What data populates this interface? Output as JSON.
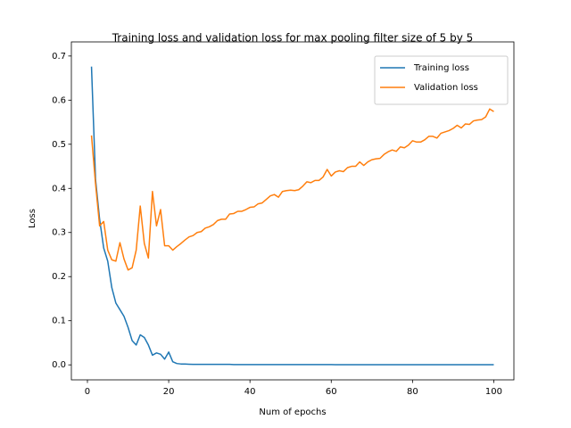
{
  "chart_data": {
    "type": "line",
    "title": "Training loss and validation loss for max pooling filter size of 5 by 5",
    "x_label": "Num of epochs",
    "y_label": "Loss",
    "x": [
      1,
      2,
      3,
      4,
      5,
      6,
      7,
      8,
      9,
      10,
      11,
      12,
      13,
      14,
      15,
      16,
      17,
      18,
      19,
      20,
      21,
      22,
      23,
      24,
      25,
      26,
      27,
      28,
      29,
      30,
      31,
      32,
      33,
      34,
      35,
      36,
      37,
      38,
      39,
      40,
      41,
      42,
      43,
      44,
      45,
      46,
      47,
      48,
      49,
      50,
      51,
      52,
      53,
      54,
      55,
      56,
      57,
      58,
      59,
      60,
      61,
      62,
      63,
      64,
      65,
      66,
      67,
      68,
      69,
      70,
      71,
      72,
      73,
      74,
      75,
      76,
      77,
      78,
      79,
      80,
      81,
      82,
      83,
      84,
      85,
      86,
      87,
      88,
      89,
      90,
      91,
      92,
      93,
      94,
      95,
      96,
      97,
      98,
      99,
      100
    ],
    "series": [
      {
        "name": "Training loss",
        "color": "#1f77b4",
        "values": [
          0.676,
          0.42,
          0.33,
          0.265,
          0.235,
          0.175,
          0.14,
          0.125,
          0.11,
          0.085,
          0.055,
          0.045,
          0.068,
          0.062,
          0.045,
          0.022,
          0.027,
          0.024,
          0.013,
          0.029,
          0.007,
          0.003,
          0.002,
          0.002,
          0.0015,
          0.001,
          0.001,
          0.001,
          0.001,
          0.001,
          0.001,
          0.001,
          0.001,
          0.001,
          0.001,
          0.0005,
          0.0005,
          0.0005,
          0.0005,
          0.0005,
          0.0005,
          0.0005,
          0.0005,
          0.0005,
          0.0005,
          0.0005,
          0.0005,
          0.0005,
          0.0005,
          0.0005,
          0.0005,
          0.0005,
          0.0005,
          0.0005,
          0.0005,
          0.0005,
          0.0005,
          0.0005,
          0.0005,
          0.0005,
          0.0003,
          0.0003,
          0.0003,
          0.0003,
          0.0003,
          0.0003,
          0.0003,
          0.0003,
          0.0003,
          0.0003,
          0.0003,
          0.0003,
          0.0003,
          0.0003,
          0.0003,
          0.0003,
          0.0003,
          0.0003,
          0.0003,
          0.0003,
          0.0003,
          0.0003,
          0.0003,
          0.0003,
          0.0003,
          0.0003,
          0.0003,
          0.0003,
          0.0003,
          0.0003,
          0.0003,
          0.0003,
          0.0003,
          0.0003,
          0.0003,
          0.0003,
          0.0003,
          0.0003,
          0.0003,
          0.0003
        ]
      },
      {
        "name": "Validation loss",
        "color": "#ff7f0e",
        "values": [
          0.52,
          0.41,
          0.315,
          0.325,
          0.26,
          0.238,
          0.235,
          0.277,
          0.24,
          0.215,
          0.22,
          0.26,
          0.36,
          0.275,
          0.242,
          0.393,
          0.315,
          0.352,
          0.27,
          0.27,
          0.26,
          0.268,
          0.275,
          0.283,
          0.29,
          0.293,
          0.3,
          0.302,
          0.31,
          0.313,
          0.318,
          0.327,
          0.33,
          0.33,
          0.342,
          0.343,
          0.348,
          0.348,
          0.352,
          0.357,
          0.358,
          0.365,
          0.367,
          0.375,
          0.383,
          0.386,
          0.38,
          0.393,
          0.395,
          0.396,
          0.395,
          0.397,
          0.405,
          0.415,
          0.413,
          0.418,
          0.418,
          0.426,
          0.443,
          0.428,
          0.437,
          0.44,
          0.438,
          0.447,
          0.45,
          0.45,
          0.46,
          0.452,
          0.46,
          0.465,
          0.467,
          0.468,
          0.477,
          0.483,
          0.487,
          0.484,
          0.494,
          0.492,
          0.498,
          0.508,
          0.505,
          0.505,
          0.51,
          0.518,
          0.518,
          0.514,
          0.525,
          0.528,
          0.531,
          0.536,
          0.543,
          0.537,
          0.546,
          0.545,
          0.553,
          0.555,
          0.556,
          0.562,
          0.58,
          0.574
        ]
      }
    ],
    "xlim": [
      -3.95,
      104.95
    ],
    "ylim": [
      -0.034,
      0.732
    ],
    "xticks": [
      0,
      20,
      40,
      60,
      80,
      100
    ],
    "yticks": [
      {
        "value": 0,
        "label": "0.0"
      },
      0.1,
      0.2,
      0.3,
      0.4,
      0.5,
      0.6,
      0.7
    ],
    "legend": "upper right",
    "grid": false
  }
}
